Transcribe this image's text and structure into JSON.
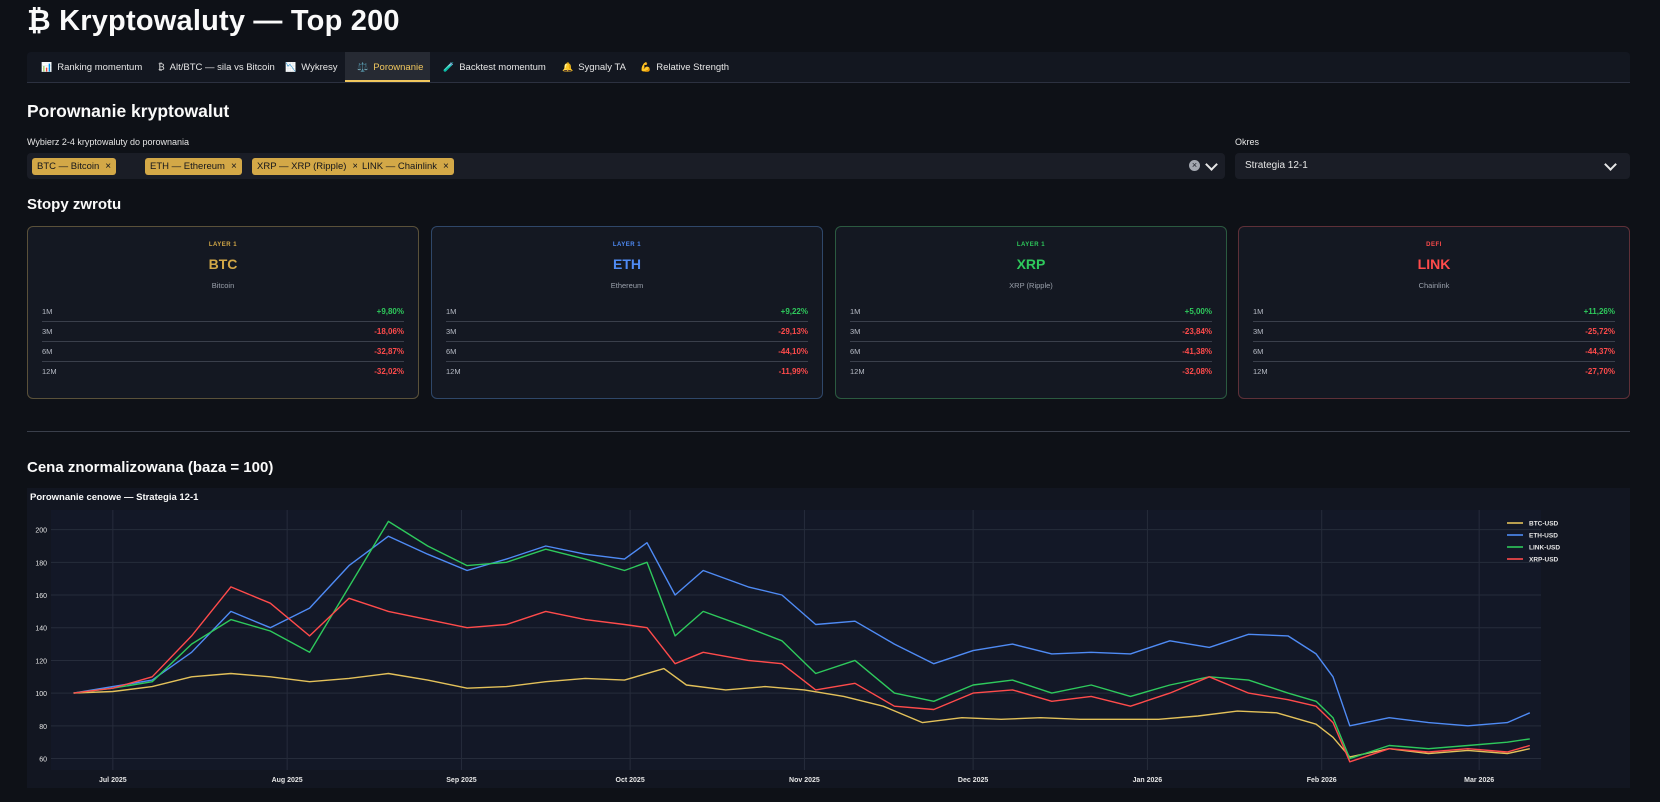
{
  "app": {
    "title": "₿ Kryptowaluty — Top 200"
  },
  "tabs": [
    {
      "icon": "📊",
      "icon_name": "bar-chart-icon",
      "label": "Ranking momentum"
    },
    {
      "icon": "₿",
      "icon_name": "bitcoin-icon",
      "label": "Alt/BTC — sila vs Bitcoin"
    },
    {
      "icon": "📉",
      "icon_name": "chart-down-icon",
      "label": "Wykresy"
    },
    {
      "icon": "⚖️",
      "icon_name": "scales-icon",
      "label": "Porownanie",
      "active": true
    },
    {
      "icon": "🧪",
      "icon_name": "test-tube-icon",
      "label": "Backtest momentum"
    },
    {
      "icon": "🔔",
      "icon_name": "bell-icon",
      "label": "Sygnaly TA"
    },
    {
      "icon": "💪",
      "icon_name": "flexed-arm-icon",
      "label": "Relative Strength"
    }
  ],
  "compare": {
    "heading": "Porownanie kryptowalut",
    "select_label": "Wybierz 2-4 kryptowaluty do porownania",
    "chips": [
      "BTC — Bitcoin",
      "ETH — Ethereum",
      "XRP — XRP (Ripple)",
      "LINK — Chainlink"
    ],
    "period_label": "Okres",
    "period_value": "Strategia 12-1"
  },
  "returns": {
    "heading": "Stopy zwrotu",
    "cards": [
      {
        "category": "LAYER 1",
        "symbol": "BTC",
        "name": "Bitcoin",
        "color": "#d3a847",
        "border": "#5a513a",
        "rows": [
          {
            "period": "1M",
            "value": "+9,80%"
          },
          {
            "period": "3M",
            "value": "-18,06%"
          },
          {
            "period": "6M",
            "value": "-32,87%"
          },
          {
            "period": "12M",
            "value": "-32,02%"
          }
        ]
      },
      {
        "category": "LAYER 1",
        "symbol": "ETH",
        "name": "Ethereum",
        "color": "#4f8bf5",
        "border": "#2f4769",
        "rows": [
          {
            "period": "1M",
            "value": "+9,22%"
          },
          {
            "period": "3M",
            "value": "-29,13%"
          },
          {
            "period": "6M",
            "value": "-44,10%"
          },
          {
            "period": "12M",
            "value": "-11,99%"
          }
        ]
      },
      {
        "category": "LAYER 1",
        "symbol": "XRP",
        "name": "XRP (Ripple)",
        "color": "#2ec95c",
        "border": "#2b5a40",
        "rows": [
          {
            "period": "1M",
            "value": "+5,00%"
          },
          {
            "period": "3M",
            "value": "-23,84%"
          },
          {
            "period": "6M",
            "value": "-41,38%"
          },
          {
            "period": "12M",
            "value": "-32,08%"
          }
        ]
      },
      {
        "category": "DEFI",
        "symbol": "LINK",
        "name": "Chainlink",
        "color": "#ff4b4b",
        "border": "#5e3038",
        "rows": [
          {
            "period": "1M",
            "value": "+11,26%"
          },
          {
            "period": "3M",
            "value": "-25,72%"
          },
          {
            "period": "6M",
            "value": "-44,37%"
          },
          {
            "period": "12M",
            "value": "-27,70%"
          }
        ]
      }
    ]
  },
  "normalized": {
    "heading": "Cena znormalizowana (baza = 100)"
  },
  "chart_data": {
    "type": "line",
    "title": "Porownanie cenowe — Strategia 12-1",
    "xlabel": "",
    "ylabel": "",
    "x_range": [
      "2025-06-20",
      "2026-03-12"
    ],
    "ylim": [
      53,
      212
    ],
    "y_ticks": [
      60,
      80,
      100,
      120,
      140,
      160,
      180,
      200
    ],
    "x_ticks": [
      {
        "date": "2025-07-01",
        "label": "Jul 2025"
      },
      {
        "date": "2025-08-01",
        "label": "Aug 2025"
      },
      {
        "date": "2025-09-01",
        "label": "Sep 2025"
      },
      {
        "date": "2025-10-01",
        "label": "Oct 2025"
      },
      {
        "date": "2025-11-01",
        "label": "Nov 2025"
      },
      {
        "date": "2025-12-01",
        "label": "Dec 2025"
      },
      {
        "date": "2026-01-01",
        "label": "Jan 2026"
      },
      {
        "date": "2026-02-01",
        "label": "Feb 2026"
      },
      {
        "date": "2026-03-01",
        "label": "Mar 2026"
      }
    ],
    "grid": true,
    "legend_position": "top-right",
    "series": [
      {
        "name": "BTC-USD",
        "color": "#e3c15a",
        "x": [
          "2025-06-24",
          "2025-07-01",
          "2025-07-08",
          "2025-07-15",
          "2025-07-22",
          "2025-07-29",
          "2025-08-05",
          "2025-08-12",
          "2025-08-19",
          "2025-08-26",
          "2025-09-02",
          "2025-09-09",
          "2025-09-16",
          "2025-09-23",
          "2025-09-30",
          "2025-10-07",
          "2025-10-11",
          "2025-10-18",
          "2025-10-25",
          "2025-11-01",
          "2025-11-08",
          "2025-11-15",
          "2025-11-22",
          "2025-11-29",
          "2025-12-06",
          "2025-12-13",
          "2025-12-20",
          "2025-12-27",
          "2026-01-03",
          "2026-01-10",
          "2026-01-17",
          "2026-01-24",
          "2026-01-31",
          "2026-02-03",
          "2026-02-06",
          "2026-02-13",
          "2026-02-20",
          "2026-02-27",
          "2026-03-06",
          "2026-03-10"
        ],
        "y": [
          100,
          101,
          104,
          110,
          112,
          110,
          107,
          109,
          112,
          108,
          103,
          104,
          107,
          109,
          108,
          115,
          105,
          102,
          104,
          102,
          98,
          92,
          82,
          85,
          84,
          85,
          84,
          84,
          84,
          86,
          89,
          88,
          81,
          73,
          61,
          66,
          63,
          65,
          63,
          66
        ]
      },
      {
        "name": "ETH-USD",
        "color": "#4f8bf5",
        "x": [
          "2025-06-24",
          "2025-07-01",
          "2025-07-08",
          "2025-07-15",
          "2025-07-22",
          "2025-07-29",
          "2025-08-05",
          "2025-08-12",
          "2025-08-19",
          "2025-08-26",
          "2025-09-02",
          "2025-09-09",
          "2025-09-16",
          "2025-09-23",
          "2025-09-30",
          "2025-10-04",
          "2025-10-09",
          "2025-10-14",
          "2025-10-22",
          "2025-10-28",
          "2025-11-03",
          "2025-11-10",
          "2025-11-17",
          "2025-11-24",
          "2025-12-01",
          "2025-12-08",
          "2025-12-15",
          "2025-12-22",
          "2025-12-29",
          "2026-01-05",
          "2026-01-12",
          "2026-01-19",
          "2026-01-26",
          "2026-01-31",
          "2026-02-03",
          "2026-02-06",
          "2026-02-13",
          "2026-02-20",
          "2026-02-27",
          "2026-03-06",
          "2026-03-10"
        ],
        "y": [
          100,
          104,
          108,
          125,
          150,
          140,
          152,
          178,
          196,
          185,
          175,
          182,
          190,
          185,
          182,
          192,
          160,
          175,
          165,
          160,
          142,
          144,
          130,
          118,
          126,
          130,
          124,
          125,
          124,
          132,
          128,
          136,
          135,
          124,
          110,
          80,
          85,
          82,
          80,
          82,
          88
        ]
      },
      {
        "name": "LINK-USD",
        "color": "#2ec95c",
        "x": [
          "2025-06-24",
          "2025-07-01",
          "2025-07-08",
          "2025-07-15",
          "2025-07-22",
          "2025-07-29",
          "2025-08-05",
          "2025-08-12",
          "2025-08-19",
          "2025-08-26",
          "2025-09-02",
          "2025-09-09",
          "2025-09-16",
          "2025-09-23",
          "2025-09-30",
          "2025-10-04",
          "2025-10-09",
          "2025-10-14",
          "2025-10-22",
          "2025-10-28",
          "2025-11-03",
          "2025-11-10",
          "2025-11-17",
          "2025-11-24",
          "2025-12-01",
          "2025-12-08",
          "2025-12-15",
          "2025-12-22",
          "2025-12-29",
          "2026-01-05",
          "2026-01-12",
          "2026-01-19",
          "2026-01-26",
          "2026-01-31",
          "2026-02-03",
          "2026-02-06",
          "2026-02-13",
          "2026-02-20",
          "2026-02-27",
          "2026-03-06",
          "2026-03-10"
        ],
        "y": [
          100,
          103,
          107,
          130,
          145,
          138,
          125,
          165,
          205,
          190,
          178,
          180,
          188,
          182,
          175,
          180,
          135,
          150,
          140,
          132,
          112,
          120,
          100,
          95,
          105,
          108,
          100,
          105,
          98,
          105,
          110,
          108,
          100,
          95,
          85,
          60,
          68,
          66,
          68,
          70,
          72
        ]
      },
      {
        "name": "XRP-USD",
        "color": "#ff4b4b",
        "x": [
          "2025-06-24",
          "2025-07-01",
          "2025-07-08",
          "2025-07-15",
          "2025-07-22",
          "2025-07-29",
          "2025-08-05",
          "2025-08-12",
          "2025-08-19",
          "2025-08-26",
          "2025-09-02",
          "2025-09-09",
          "2025-09-16",
          "2025-09-23",
          "2025-09-30",
          "2025-10-04",
          "2025-10-09",
          "2025-10-14",
          "2025-10-22",
          "2025-10-28",
          "2025-11-03",
          "2025-11-10",
          "2025-11-17",
          "2025-11-24",
          "2025-12-01",
          "2025-12-08",
          "2025-12-15",
          "2025-12-22",
          "2025-12-29",
          "2026-01-05",
          "2026-01-12",
          "2026-01-19",
          "2026-01-26",
          "2026-01-31",
          "2026-02-03",
          "2026-02-06",
          "2026-02-13",
          "2026-02-20",
          "2026-02-27",
          "2026-03-06",
          "2026-03-10"
        ],
        "y": [
          100,
          103,
          110,
          135,
          165,
          155,
          135,
          158,
          150,
          145,
          140,
          142,
          150,
          145,
          142,
          140,
          118,
          125,
          120,
          118,
          102,
          106,
          92,
          90,
          100,
          102,
          95,
          98,
          92,
          100,
          110,
          100,
          96,
          92,
          82,
          58,
          66,
          64,
          66,
          64,
          68
        ]
      }
    ]
  }
}
